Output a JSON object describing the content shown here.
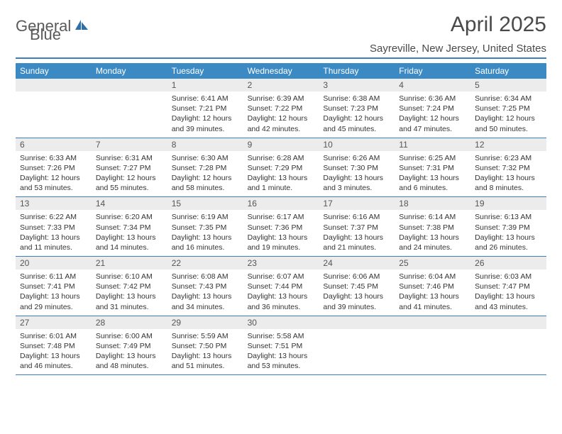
{
  "brand": {
    "part1": "General",
    "part2": "Blue"
  },
  "title": "April 2025",
  "location": "Sayreville, New Jersey, United States",
  "colors": {
    "header_bg": "#3b8ac4",
    "header_text": "#ffffff",
    "rule": "#3b7fbf",
    "daynum_bg": "#ececec",
    "text": "#333333",
    "logo_gray": "#5a5a5a",
    "logo_blue": "#2f6fa8"
  },
  "fonts": {
    "title_size": 30,
    "location_size": 15,
    "dayhead_size": 12,
    "body_size": 10.5
  },
  "day_names": [
    "Sunday",
    "Monday",
    "Tuesday",
    "Wednesday",
    "Thursday",
    "Friday",
    "Saturday"
  ],
  "weeks": [
    [
      {
        "blank": true
      },
      {
        "blank": true
      },
      {
        "n": "1",
        "sr": "Sunrise: 6:41 AM",
        "ss": "Sunset: 7:21 PM",
        "dl": "Daylight: 12 hours and 39 minutes."
      },
      {
        "n": "2",
        "sr": "Sunrise: 6:39 AM",
        "ss": "Sunset: 7:22 PM",
        "dl": "Daylight: 12 hours and 42 minutes."
      },
      {
        "n": "3",
        "sr": "Sunrise: 6:38 AM",
        "ss": "Sunset: 7:23 PM",
        "dl": "Daylight: 12 hours and 45 minutes."
      },
      {
        "n": "4",
        "sr": "Sunrise: 6:36 AM",
        "ss": "Sunset: 7:24 PM",
        "dl": "Daylight: 12 hours and 47 minutes."
      },
      {
        "n": "5",
        "sr": "Sunrise: 6:34 AM",
        "ss": "Sunset: 7:25 PM",
        "dl": "Daylight: 12 hours and 50 minutes."
      }
    ],
    [
      {
        "n": "6",
        "sr": "Sunrise: 6:33 AM",
        "ss": "Sunset: 7:26 PM",
        "dl": "Daylight: 12 hours and 53 minutes."
      },
      {
        "n": "7",
        "sr": "Sunrise: 6:31 AM",
        "ss": "Sunset: 7:27 PM",
        "dl": "Daylight: 12 hours and 55 minutes."
      },
      {
        "n": "8",
        "sr": "Sunrise: 6:30 AM",
        "ss": "Sunset: 7:28 PM",
        "dl": "Daylight: 12 hours and 58 minutes."
      },
      {
        "n": "9",
        "sr": "Sunrise: 6:28 AM",
        "ss": "Sunset: 7:29 PM",
        "dl": "Daylight: 13 hours and 1 minute."
      },
      {
        "n": "10",
        "sr": "Sunrise: 6:26 AM",
        "ss": "Sunset: 7:30 PM",
        "dl": "Daylight: 13 hours and 3 minutes."
      },
      {
        "n": "11",
        "sr": "Sunrise: 6:25 AM",
        "ss": "Sunset: 7:31 PM",
        "dl": "Daylight: 13 hours and 6 minutes."
      },
      {
        "n": "12",
        "sr": "Sunrise: 6:23 AM",
        "ss": "Sunset: 7:32 PM",
        "dl": "Daylight: 13 hours and 8 minutes."
      }
    ],
    [
      {
        "n": "13",
        "sr": "Sunrise: 6:22 AM",
        "ss": "Sunset: 7:33 PM",
        "dl": "Daylight: 13 hours and 11 minutes."
      },
      {
        "n": "14",
        "sr": "Sunrise: 6:20 AM",
        "ss": "Sunset: 7:34 PM",
        "dl": "Daylight: 13 hours and 14 minutes."
      },
      {
        "n": "15",
        "sr": "Sunrise: 6:19 AM",
        "ss": "Sunset: 7:35 PM",
        "dl": "Daylight: 13 hours and 16 minutes."
      },
      {
        "n": "16",
        "sr": "Sunrise: 6:17 AM",
        "ss": "Sunset: 7:36 PM",
        "dl": "Daylight: 13 hours and 19 minutes."
      },
      {
        "n": "17",
        "sr": "Sunrise: 6:16 AM",
        "ss": "Sunset: 7:37 PM",
        "dl": "Daylight: 13 hours and 21 minutes."
      },
      {
        "n": "18",
        "sr": "Sunrise: 6:14 AM",
        "ss": "Sunset: 7:38 PM",
        "dl": "Daylight: 13 hours and 24 minutes."
      },
      {
        "n": "19",
        "sr": "Sunrise: 6:13 AM",
        "ss": "Sunset: 7:39 PM",
        "dl": "Daylight: 13 hours and 26 minutes."
      }
    ],
    [
      {
        "n": "20",
        "sr": "Sunrise: 6:11 AM",
        "ss": "Sunset: 7:41 PM",
        "dl": "Daylight: 13 hours and 29 minutes."
      },
      {
        "n": "21",
        "sr": "Sunrise: 6:10 AM",
        "ss": "Sunset: 7:42 PM",
        "dl": "Daylight: 13 hours and 31 minutes."
      },
      {
        "n": "22",
        "sr": "Sunrise: 6:08 AM",
        "ss": "Sunset: 7:43 PM",
        "dl": "Daylight: 13 hours and 34 minutes."
      },
      {
        "n": "23",
        "sr": "Sunrise: 6:07 AM",
        "ss": "Sunset: 7:44 PM",
        "dl": "Daylight: 13 hours and 36 minutes."
      },
      {
        "n": "24",
        "sr": "Sunrise: 6:06 AM",
        "ss": "Sunset: 7:45 PM",
        "dl": "Daylight: 13 hours and 39 minutes."
      },
      {
        "n": "25",
        "sr": "Sunrise: 6:04 AM",
        "ss": "Sunset: 7:46 PM",
        "dl": "Daylight: 13 hours and 41 minutes."
      },
      {
        "n": "26",
        "sr": "Sunrise: 6:03 AM",
        "ss": "Sunset: 7:47 PM",
        "dl": "Daylight: 13 hours and 43 minutes."
      }
    ],
    [
      {
        "n": "27",
        "sr": "Sunrise: 6:01 AM",
        "ss": "Sunset: 7:48 PM",
        "dl": "Daylight: 13 hours and 46 minutes."
      },
      {
        "n": "28",
        "sr": "Sunrise: 6:00 AM",
        "ss": "Sunset: 7:49 PM",
        "dl": "Daylight: 13 hours and 48 minutes."
      },
      {
        "n": "29",
        "sr": "Sunrise: 5:59 AM",
        "ss": "Sunset: 7:50 PM",
        "dl": "Daylight: 13 hours and 51 minutes."
      },
      {
        "n": "30",
        "sr": "Sunrise: 5:58 AM",
        "ss": "Sunset: 7:51 PM",
        "dl": "Daylight: 13 hours and 53 minutes."
      },
      {
        "blank": true
      },
      {
        "blank": true
      },
      {
        "blank": true
      }
    ]
  ]
}
